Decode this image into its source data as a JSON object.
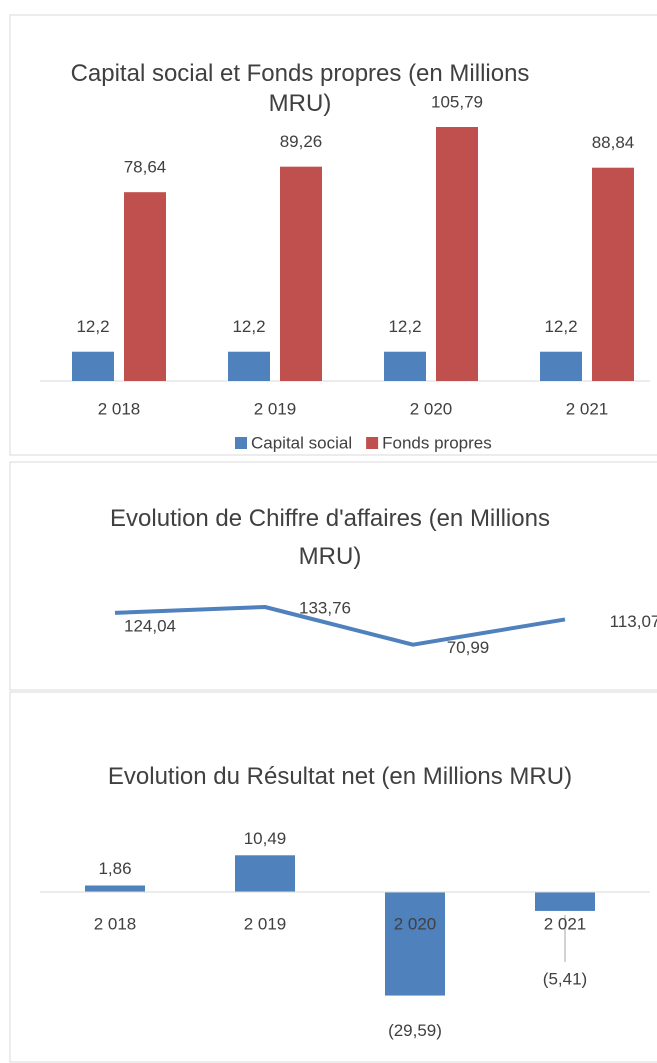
{
  "chart_data": [
    {
      "type": "bar",
      "title": "Capital social et Fonds propres (en Millions MRU)",
      "categories": [
        "2 018",
        "2 019",
        "2 020",
        "2 021"
      ],
      "series": [
        {
          "name": "Capital social",
          "color": "#4f81bd",
          "values": [
            12.2,
            12.2,
            12.2,
            12.2
          ],
          "value_labels": [
            "12,2",
            "12,2",
            "12,2",
            "12,2"
          ]
        },
        {
          "name": "Fonds propres",
          "color": "#c0504d",
          "values": [
            78.64,
            89.26,
            105.79,
            88.84
          ],
          "value_labels": [
            "78,64",
            "89,26",
            "105,79",
            "88,84"
          ]
        }
      ],
      "legend": "bottom"
    },
    {
      "type": "line",
      "title": "Evolution de Chiffre d'affaires (en Millions MRU)",
      "categories": [
        null,
        null,
        null,
        null
      ],
      "color": "#4f81bd",
      "values": [
        124.04,
        133.76,
        70.99,
        113.07
      ],
      "value_labels": [
        "124,04",
        "133,76",
        "70,99",
        "113,07"
      ]
    },
    {
      "type": "bar",
      "title": "Evolution du Résultat net (en Millions MRU)",
      "categories": [
        "2 018",
        "2 019",
        "2 020",
        "2 021"
      ],
      "color": "#4f81bd",
      "values": [
        1.86,
        10.49,
        -29.59,
        -5.41
      ],
      "value_labels": [
        "1,86",
        "10,49",
        "(29,59)",
        "(5,41)"
      ]
    }
  ]
}
